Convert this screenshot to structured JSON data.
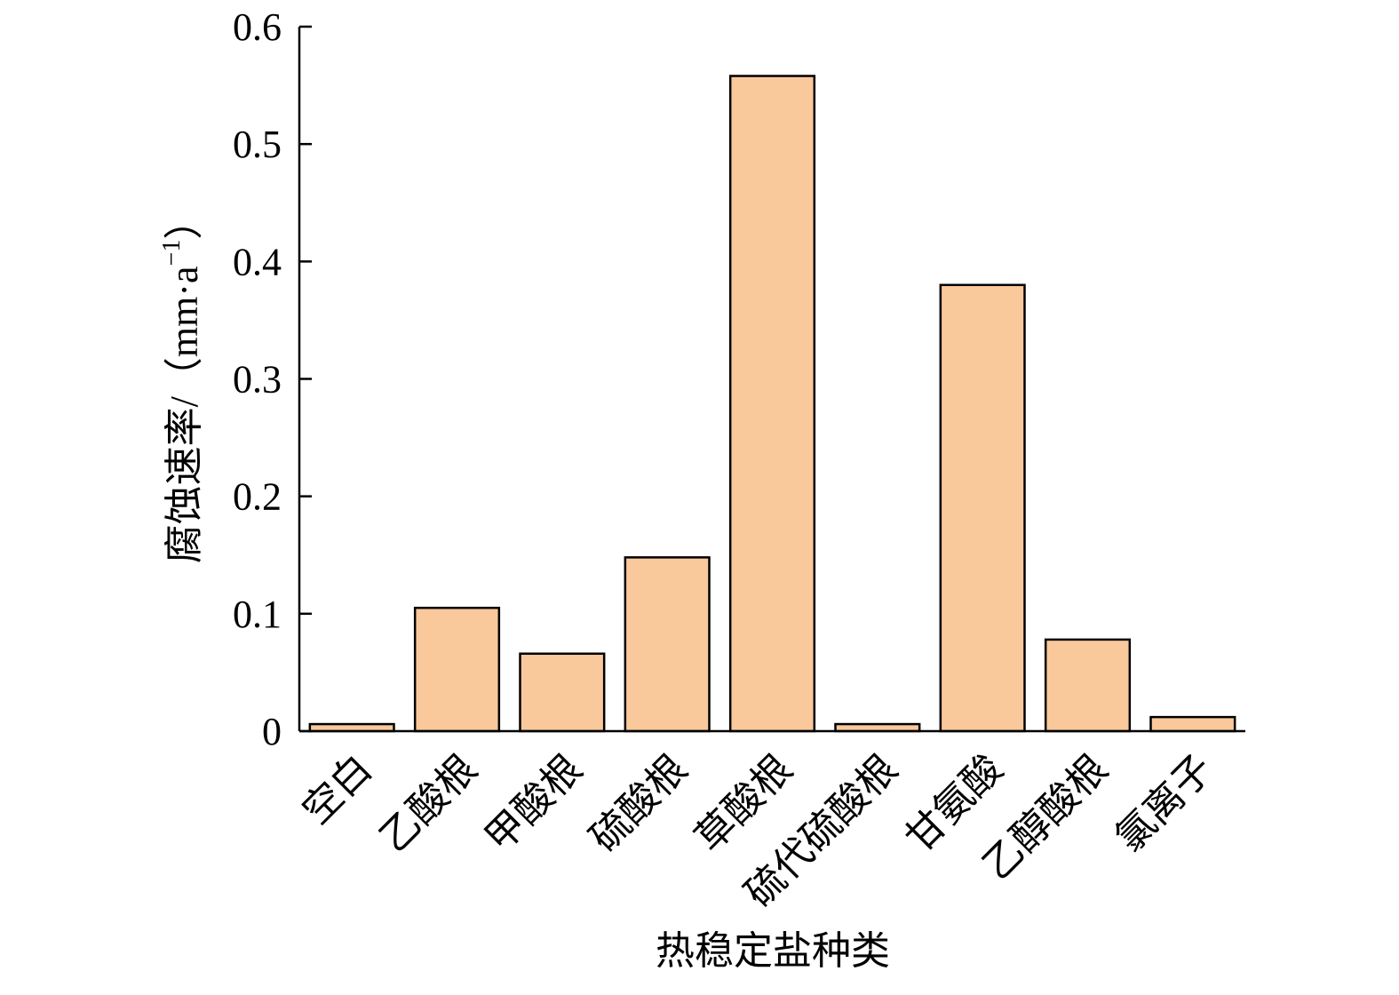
{
  "chart_data": {
    "type": "bar",
    "y_label": [
      "腐蚀速率/（mm·a",
      "−1",
      "）"
    ],
    "x_label": "热稳定盐种类",
    "categories": [
      "空白",
      "乙酸根",
      "甲酸根",
      "硫酸根",
      "草酸根",
      "硫代硫酸根",
      "甘氨酸",
      "乙醇酸根",
      "氯离子"
    ],
    "values": [
      0.006,
      0.105,
      0.066,
      0.148,
      0.558,
      0.006,
      0.38,
      0.078,
      0.012
    ],
    "color": "#f9c89b",
    "ylim": [
      0,
      0.6
    ],
    "yticks": [
      0,
      0.1,
      0.2,
      0.3,
      0.4,
      0.5,
      0.6
    ]
  }
}
